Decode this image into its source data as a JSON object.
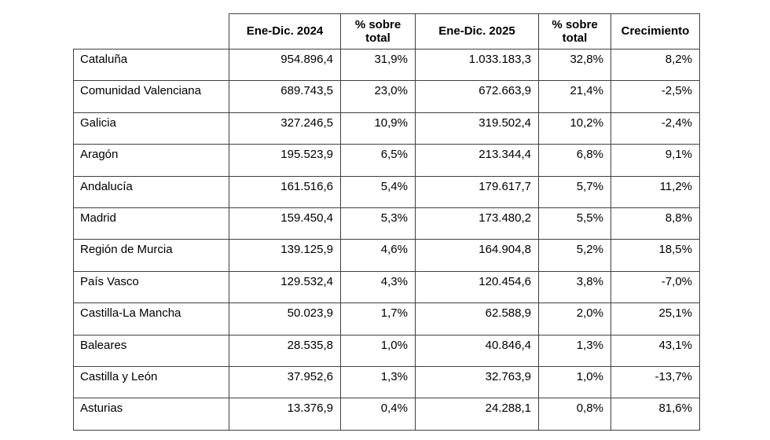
{
  "table": {
    "columns": [
      "",
      "Ene-Dic. 2024",
      "% sobre total",
      "Ene-Dic. 2025",
      "% sobre total",
      "Crecimiento"
    ],
    "rows": [
      [
        "Cataluña",
        "954.896,4",
        "31,9%",
        "1.033.183,3",
        "32,8%",
        "8,2%"
      ],
      [
        "Comunidad Valenciana",
        "689.743,5",
        "23,0%",
        "672.663,9",
        "21,4%",
        "-2,5%"
      ],
      [
        "Galicia",
        "327.246,5",
        "10,9%",
        "319.502,4",
        "10,2%",
        "-2,4%"
      ],
      [
        "Aragón",
        "195.523,9",
        "6,5%",
        "213.344,4",
        "6,8%",
        "9,1%"
      ],
      [
        "Andalucía",
        "161.516,6",
        "5,4%",
        "179.617,7",
        "5,7%",
        "11,2%"
      ],
      [
        "Madrid",
        "159.450,4",
        "5,3%",
        "173.480,2",
        "5,5%",
        "8,8%"
      ],
      [
        "Región de Murcia",
        "139.125,9",
        "4,6%",
        "164.904,8",
        "5,2%",
        "18,5%"
      ],
      [
        "País Vasco",
        "129.532,4",
        "4,3%",
        "120.454,6",
        "3,8%",
        "-7,0%"
      ],
      [
        "Castilla-La Mancha",
        "50.023,9",
        "1,7%",
        "62.588,9",
        "2,0%",
        "25,1%"
      ],
      [
        "Baleares",
        "28.535,8",
        "1,0%",
        "40.846,4",
        "1,3%",
        "43,1%"
      ],
      [
        "Castilla y León",
        "37.952,6",
        "1,3%",
        "32.763,9",
        "1,0%",
        "-13,7%"
      ],
      [
        "Asturias",
        "13.376,9",
        "0,4%",
        "24.288,1",
        "0,8%",
        "81,6%"
      ]
    ],
    "border_color": "#404040"
  }
}
